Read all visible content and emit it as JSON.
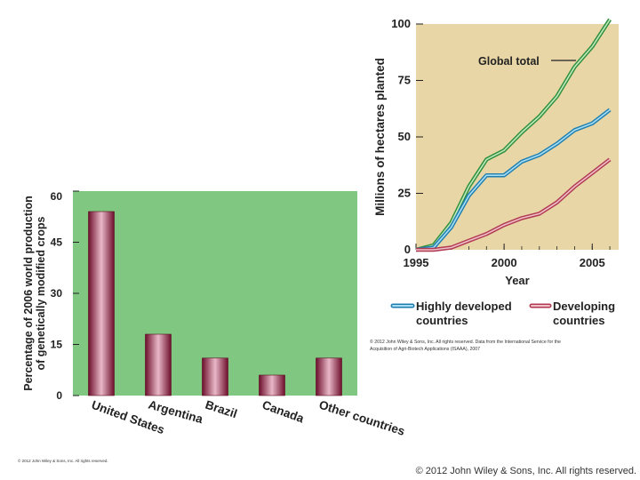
{
  "colors": {
    "bar_panel_bg": "#80c882",
    "line_panel_bg": "#e8d6a6",
    "bar_fill": "#8e1a3c",
    "global_line": "#55b060",
    "developed_line": "#55b8e0",
    "developing_line": "#c86a7a"
  },
  "chart_data": [
    {
      "type": "bar",
      "title": "",
      "ylabel": "Percentage of 2006 world production of genetically modified crops",
      "ylabel_lines": [
        "Percentage of 2006 world production",
        "of genetically modified crops"
      ],
      "xlabel": "",
      "categories": [
        "United States",
        "Argentina",
        "Brazil",
        "Canada",
        "Other countries"
      ],
      "values": [
        54,
        18,
        11,
        6,
        11
      ],
      "ylim": [
        0,
        60
      ],
      "yticks": [
        "0",
        "15",
        "30",
        "45",
        "60"
      ],
      "grid": false,
      "copyright": "© 2012 John Wiley & Sons, Inc. All rights reserved."
    },
    {
      "type": "line",
      "xlabel": "Year",
      "ylabel": "Millions of hectares planted",
      "xlim": [
        1995,
        2006.5
      ],
      "ylim": [
        0,
        100
      ],
      "xticks": [
        "1995",
        "2000",
        "2005"
      ],
      "yticks": [
        "0",
        "25",
        "50",
        "75",
        "100"
      ],
      "x": [
        1995,
        1996,
        1997,
        1998,
        1999,
        2000,
        2001,
        2002,
        2003,
        2004,
        2005,
        2006
      ],
      "series": [
        {
          "name": "Global total",
          "values": [
            0,
            2,
            12,
            28,
            40,
            44,
            52,
            59,
            68,
            81,
            90,
            102
          ]
        },
        {
          "name": "Highly developed countries",
          "values": [
            0,
            1,
            10,
            24,
            33,
            33,
            39,
            42,
            47,
            53,
            56,
            62
          ]
        },
        {
          "name": "Developing countries",
          "values": [
            0,
            0,
            1,
            4,
            7,
            11,
            14,
            16,
            21,
            28,
            34,
            40
          ]
        }
      ],
      "annotation": "Global total",
      "legend": [
        "Highly developed countries",
        "Developing countries"
      ],
      "legend_lines": [
        [
          "Highly developed",
          "countries"
        ],
        [
          "Developing",
          "countries"
        ]
      ],
      "legend_position": "bottom",
      "source_note": "© 2012 John Wiley & Sons, Inc. All rights reserved. Data from the International Service for the Acquisition of Agri-Biotech Applications (ISAAA), 2007",
      "source_note_lines": [
        "© 2012 John Wiley & Sons, Inc. All rights reserved. Data from the International Service for the",
        "Acquisition of Agri-Biotech Applications (ISAAA), 2007"
      ]
    }
  ],
  "footer": "© 2012 John Wiley & Sons, Inc. All rights reserved."
}
